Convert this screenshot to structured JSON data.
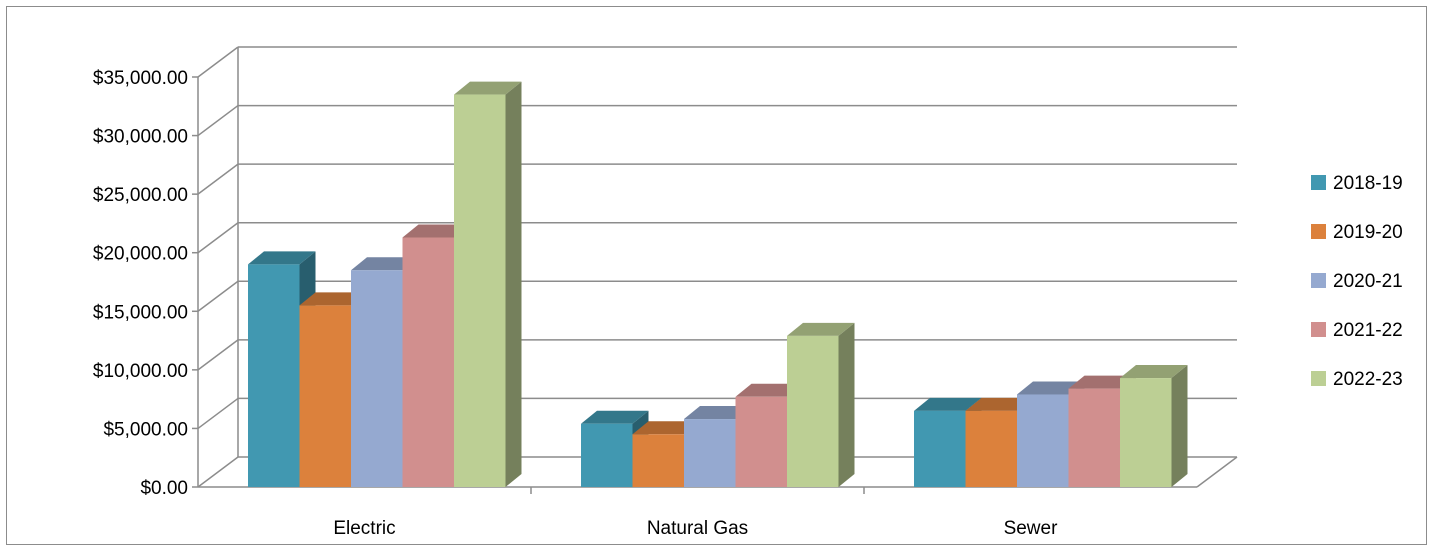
{
  "chart_data": {
    "type": "bar",
    "title": "",
    "xlabel": "",
    "ylabel": "",
    "categories": [
      "Electric",
      "Natural Gas",
      "Sewer"
    ],
    "series": [
      {
        "name": "2018-19",
        "values": [
          19000,
          5400,
          6500
        ],
        "color": "#4198b1"
      },
      {
        "name": "2019-20",
        "values": [
          15500,
          4500,
          6500
        ],
        "color": "#dc813c"
      },
      {
        "name": "2020-21",
        "values": [
          18500,
          5800,
          7900
        ],
        "color": "#95a9d0"
      },
      {
        "name": "2021-22",
        "values": [
          21300,
          7700,
          8400
        ],
        "color": "#d18f8e"
      },
      {
        "name": "2022-23",
        "values": [
          33500,
          12900,
          9300
        ],
        "color": "#bccf94"
      }
    ],
    "ylim": [
      0,
      35000
    ],
    "y_ticks": [
      "$0.00",
      "$5,000.00",
      "$10,000.00",
      "$15,000.00",
      "$20,000.00",
      "$25,000.00",
      "$30,000.00",
      "$35,000.00"
    ],
    "grid": true,
    "legend_position": "right",
    "three_d": true
  }
}
